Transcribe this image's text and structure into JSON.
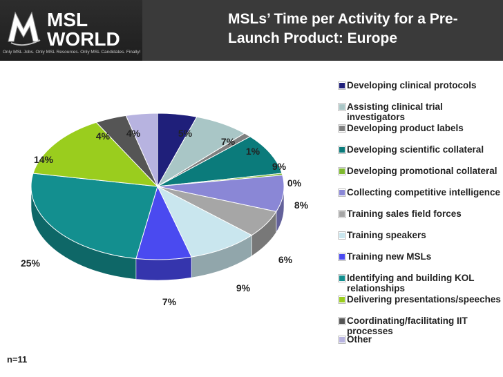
{
  "header": {
    "logo_line1": "MSL",
    "logo_line2": "WORLD",
    "logo_tagline": "Only MSL Jobs. Only MSL Resources. Only MSL Candidates. Finally!",
    "title": "MSLs’ Time per Activity for a Pre-Launch Product: Europe"
  },
  "footnote": "n=11",
  "chart_data": {
    "type": "pie",
    "title": "MSLs’ Time per Activity for a Pre-Launch Product: Europe",
    "legend_position": "right",
    "slices": [
      {
        "label": "Developing clinical protocols",
        "value": 5,
        "display": "5%",
        "color": "#1f1f7a"
      },
      {
        "label": "Assisting clinical trial investigators",
        "value": 7,
        "display": "7%",
        "color": "#a9c6c6"
      },
      {
        "label": "Developing product labels",
        "value": 1,
        "display": "1%",
        "color": "#7f7f7f"
      },
      {
        "label": "Developing scientific collateral",
        "value": 9,
        "display": "9%",
        "color": "#0b7b7b"
      },
      {
        "label": "Developing promotional collateral",
        "value": 0.4,
        "display": "0%",
        "color": "#7fb92f"
      },
      {
        "label": "Collecting competitive intelligence",
        "value": 8,
        "display": "8%",
        "color": "#8a87d6"
      },
      {
        "label": "Training sales field forces",
        "value": 6,
        "display": "6%",
        "color": "#a6a6a6"
      },
      {
        "label": "Training speakers",
        "value": 9,
        "display": "9%",
        "color": "#c9e6ee"
      },
      {
        "label": "Training new MSLs",
        "value": 7,
        "display": "7%",
        "color": "#4a4af0"
      },
      {
        "label": "Identifying and building KOL relationships",
        "value": 25,
        "display": "25%",
        "color": "#138f8f"
      },
      {
        "label": "Delivering presentations/speeches",
        "value": 14,
        "display": "14%",
        "color": "#9acd1e"
      },
      {
        "label": "Coordinating/facilitating IIT processes",
        "value": 4,
        "display": "4%",
        "color": "#555555"
      },
      {
        "label": "Other",
        "value": 4,
        "display": "4%",
        "color": "#b7b3e0"
      }
    ]
  }
}
